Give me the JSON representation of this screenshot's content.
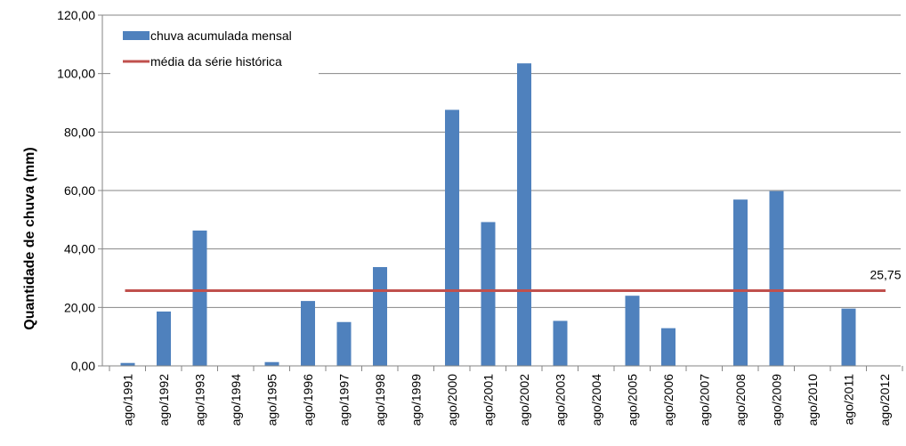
{
  "chart_data": {
    "type": "bar",
    "ylabel": "Quantidade de chuva (mm)",
    "xlabel": "",
    "ylim": [
      0,
      120
    ],
    "yticks": [
      "0,00",
      "20,00",
      "40,00",
      "60,00",
      "80,00",
      "100,00",
      "120,00"
    ],
    "grid": true,
    "legend_position": "top-left",
    "categories": [
      "ago/1991",
      "ago/1992",
      "ago/1993",
      "ago/1994",
      "ago/1995",
      "ago/1996",
      "ago/1997",
      "ago/1998",
      "ago/1999",
      "ago/2000",
      "ago/2001",
      "ago/2002",
      "ago/2003",
      "ago/2004",
      "ago/2005",
      "ago/2006",
      "ago/2007",
      "ago/2008",
      "ago/2009",
      "ago/2010",
      "ago/2011",
      "ago/2012"
    ],
    "series": [
      {
        "name": "chuva acumulada mensal",
        "type": "bar",
        "color": "#4F81BD",
        "values": [
          1.0,
          18.6,
          46.3,
          0,
          1.3,
          22.2,
          15.0,
          33.8,
          0,
          87.6,
          49.2,
          103.5,
          15.4,
          0,
          24.0,
          12.9,
          0,
          56.9,
          59.8,
          0,
          19.6,
          0
        ]
      },
      {
        "name": "média da série histórica",
        "type": "line",
        "color": "#C0504D",
        "value": 25.75,
        "label": "25,75"
      }
    ]
  }
}
